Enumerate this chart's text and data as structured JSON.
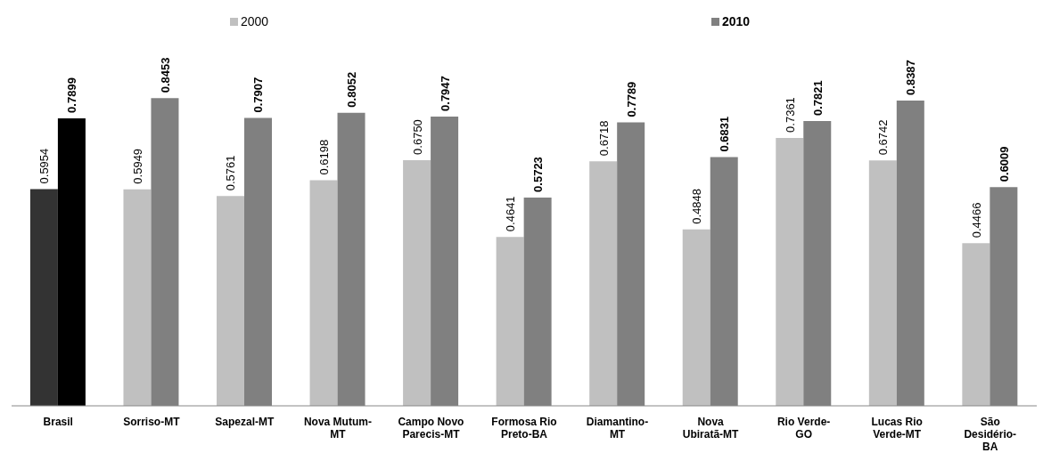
{
  "chart_data": {
    "type": "bar",
    "categories": [
      "Brasil",
      "Sorriso-MT",
      "Sapezal-MT",
      "Nova Mutum-MT",
      "Campo Novo Parecis-MT",
      "Formosa Rio Preto-BA",
      "Diamantino-MT",
      "Nova Ubiratã-MT",
      "Rio Verde-GO",
      "Lucas Rio Verde-MT",
      "São Desidério-BA"
    ],
    "series": [
      {
        "name": "2000",
        "color": "#c0c0c0",
        "colors": [
          "#333333",
          "#c0c0c0",
          "#c0c0c0",
          "#c0c0c0",
          "#c0c0c0",
          "#c0c0c0",
          "#c0c0c0",
          "#c0c0c0",
          "#c0c0c0",
          "#c0c0c0",
          "#c0c0c0"
        ],
        "values": [
          0.5954,
          0.5949,
          0.5761,
          0.6198,
          0.675,
          0.4641,
          0.6718,
          0.4848,
          0.7361,
          0.6742,
          0.4466
        ],
        "value_labels": [
          "0.5954",
          "0.5949",
          "0.5761",
          "0.6198",
          "0.6750",
          "0.4641",
          "0.6718",
          "0.4848",
          "0.7361",
          "0.6742",
          "0.4466"
        ]
      },
      {
        "name": "2010",
        "color": "#808080",
        "colors": [
          "#000000",
          "#808080",
          "#808080",
          "#808080",
          "#808080",
          "#808080",
          "#808080",
          "#808080",
          "#808080",
          "#808080",
          "#808080"
        ],
        "values": [
          0.7899,
          0.8453,
          0.7907,
          0.8052,
          0.7947,
          0.5723,
          0.7789,
          0.6831,
          0.7821,
          0.8387,
          0.6009
        ],
        "value_labels": [
          "0.7899",
          "0.8453",
          "0.7907",
          "0.8052",
          "0.7947",
          "0.5723",
          "0.7789",
          "0.6831",
          "0.7821",
          "0.8387",
          "0.6009"
        ]
      }
    ],
    "legend": "top"
  }
}
